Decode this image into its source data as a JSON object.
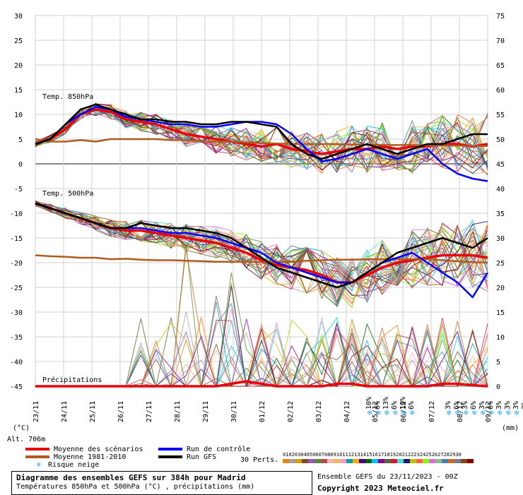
{
  "chart_data": {
    "type": "line",
    "x_labels": [
      "23/11",
      "24/11",
      "25/11",
      "26/11",
      "27/11",
      "28/11",
      "29/11",
      "30/11",
      "01/12",
      "02/12",
      "03/12",
      "04/12",
      "05/12",
      "06/12",
      "07/12",
      "08/12",
      "09/12"
    ],
    "y_left_ticks": [
      30,
      25,
      20,
      15,
      10,
      5,
      0,
      -5,
      -10,
      -15,
      -20,
      -25,
      -30,
      -35,
      -40,
      -45
    ],
    "y_right_ticks": [
      75,
      70,
      65,
      60,
      55,
      50,
      45,
      40,
      35,
      30,
      25,
      20,
      15,
      10,
      5,
      0
    ],
    "ylim": [
      -45,
      30
    ],
    "grid": true,
    "xlabel_left": "(°C)",
    "xlabel_right": "(mm)",
    "alt_label": "Alt. 706m",
    "section_labels": {
      "t850": "Temp. 850hPa",
      "t500": "Temp. 500hPa",
      "precip": "Précipitations"
    },
    "series": [
      {
        "name": "Moyenne des scénarios",
        "group": "t850",
        "color": "#e8000b",
        "values": [
          4,
          5,
          7,
          10,
          11,
          10.5,
          9,
          8.5,
          8,
          7,
          6,
          5.5,
          5,
          4.5,
          4,
          3.5,
          4,
          3,
          2.5,
          2,
          2.5,
          3,
          3,
          3.5,
          3,
          3.5,
          3.5,
          4,
          4,
          3.5,
          4
        ]
      },
      {
        "name": "Moyenne 1981-2010",
        "group": "t850",
        "color": "#b05a1e",
        "values": [
          5,
          4.5,
          4.5,
          4.8,
          4.5,
          5,
          5,
          5,
          5,
          4.8,
          4.8,
          4.6,
          4.5,
          4.5,
          4.3,
          4.2,
          4.1,
          4,
          4,
          4,
          4,
          3.9,
          3.9,
          3.8,
          3.8,
          3.8,
          3.7,
          3.7,
          3.7,
          3.6,
          3.6
        ]
      },
      {
        "name": "Run de contrôle",
        "group": "t850",
        "color": "#0000ff",
        "values": [
          4,
          5,
          8,
          10,
          11.5,
          11,
          9.5,
          9,
          8.5,
          8,
          8,
          7.5,
          7.5,
          8,
          8.5,
          8.5,
          8,
          6,
          3,
          0.5,
          1,
          2,
          3,
          2,
          1,
          2,
          3,
          0,
          -2,
          -3,
          -3.5
        ]
      },
      {
        "name": "Run GFS",
        "group": "t850",
        "color": "#000000",
        "values": [
          4,
          5,
          8,
          11,
          12,
          11,
          10,
          9,
          9,
          8.5,
          8.5,
          8,
          8,
          8.5,
          8.5,
          8,
          7.5,
          4,
          2,
          1,
          2,
          3,
          4,
          3,
          2,
          3,
          4,
          4,
          5,
          6,
          6
        ]
      },
      {
        "name": "Moyenne des scénarios",
        "group": "t500",
        "color": "#e8000b",
        "values": [
          -8,
          -9,
          -10,
          -11,
          -12,
          -13,
          -13.5,
          -13.5,
          -14,
          -14.5,
          -15,
          -15.5,
          -16,
          -17,
          -18,
          -19.5,
          -20.5,
          -21,
          -21.5,
          -22.5,
          -24,
          -24,
          -22.5,
          -21,
          -20,
          -19.5,
          -19,
          -18.5,
          -18.5,
          -18.5,
          -19
        ]
      },
      {
        "name": "Moyenne 1981-2010",
        "group": "t500",
        "color": "#b05a1e",
        "values": [
          -18.5,
          -18.7,
          -18.8,
          -19,
          -19,
          -19.3,
          -19.2,
          -19.4,
          -19.5,
          -19.5,
          -19.6,
          -19.7,
          -19.8,
          -19.8,
          -19.8,
          -19.9,
          -19.9,
          -19.8,
          -19.6,
          -19.5,
          -19.4,
          -19.4,
          -19.3,
          -19.3,
          -19.3,
          -19.3,
          -19.3,
          -19.5,
          -19.7,
          -19.9,
          -20
        ]
      },
      {
        "name": "Run de contrôle",
        "group": "t500",
        "color": "#0000ff",
        "values": [
          -8,
          -9,
          -10,
          -11,
          -12,
          -13,
          -13,
          -13,
          -13.5,
          -14,
          -14,
          -14.5,
          -15,
          -16,
          -17,
          -18,
          -20,
          -21,
          -22,
          -23,
          -24,
          -24,
          -22,
          -20,
          -19,
          -18,
          -20,
          -22,
          -24,
          -27,
          -22
        ]
      },
      {
        "name": "Run GFS",
        "group": "t500",
        "color": "#000000",
        "values": [
          -8,
          -9,
          -10,
          -11,
          -12,
          -13,
          -13,
          -12,
          -12.5,
          -13,
          -13,
          -13.5,
          -14,
          -15,
          -17,
          -19,
          -21,
          -22,
          -23,
          -24,
          -25,
          -24,
          -22,
          -20,
          -18,
          -17,
          -16,
          -15,
          -16,
          -17,
          -15
        ]
      },
      {
        "name": "Moyenne des scénarios",
        "group": "precip",
        "color": "#e8000b",
        "values": [
          -45,
          -45,
          -45,
          -45,
          -45,
          -45,
          -45,
          -45,
          -45,
          -45,
          -45,
          -45,
          -45,
          -44.5,
          -44,
          -44.5,
          -45,
          -45,
          -45,
          -45,
          -44.5,
          -44.5,
          -45,
          -45,
          -45,
          -45,
          -45,
          -44.5,
          -44.5,
          -44.8,
          -45
        ]
      }
    ],
    "snow_risk": [
      {
        "label": "10%",
        "day_index": 11.8
      },
      {
        "label": "6%",
        "day_index": 12.1
      },
      {
        "label": "13%",
        "day_index": 12.4
      },
      {
        "label": "6%",
        "day_index": 12.7
      },
      {
        "label": "10%",
        "day_index": 13.0
      },
      {
        "label": "6%",
        "day_index": 13.3
      },
      {
        "label": "3%",
        "day_index": 14.6
      },
      {
        "label": "6%",
        "day_index": 14.9
      },
      {
        "label": "3%",
        "day_index": 15.2
      },
      {
        "label": "6%",
        "day_index": 15.5
      },
      {
        "label": "3%",
        "day_index": 15.8
      },
      {
        "label": "6%",
        "day_index": 16.1
      },
      {
        "label": "3%",
        "day_index": 16.4
      },
      {
        "label": "3%",
        "day_index": 16.7
      },
      {
        "label": "3%",
        "day_index": 17.0
      },
      {
        "label": "3%",
        "day_index": 17.3
      },
      {
        "label": "3%",
        "day_index": 17.6
      },
      {
        "label": "3%",
        "day_index": 17.9
      }
    ]
  },
  "legend": {
    "items": [
      {
        "label": "Moyenne des scénarios",
        "color": "#e8000b"
      },
      {
        "label": "Moyenne 1981-2010",
        "color": "#b05a1e"
      },
      {
        "label": "Risque neige",
        "color": "#3aa8e8"
      },
      {
        "label": "Run de contrôle",
        "color": "#0000ff"
      },
      {
        "label": "Run GFS",
        "color": "#000000"
      }
    ],
    "perts_label": "30 Perts.",
    "pert_numbers": [
      "01",
      "02",
      "03",
      "04",
      "05",
      "06",
      "07",
      "08",
      "09",
      "10",
      "11",
      "12",
      "13",
      "14",
      "15",
      "16",
      "17",
      "18",
      "19",
      "20",
      "21",
      "22",
      "23",
      "24",
      "25",
      "26",
      "27",
      "28",
      "29",
      "30"
    ],
    "pert_colors": [
      "#e8850b",
      "#a0a0a0",
      "#d4a000",
      "#7a4f2a",
      "#9b59b6",
      "#5d8a3a",
      "#b34d4d",
      "#ffb3b3",
      "#e0c060",
      "#ff99cc",
      "#00a0a0",
      "#ffa500",
      "#4b0082",
      "#006400",
      "#00bfff",
      "#8b008b",
      "#556b2f",
      "#dc143c",
      "#40e0d0",
      "#191970",
      "#c0c000",
      "#ff6347",
      "#7fff00",
      "#da70d6",
      "#8fbc8f",
      "#4682b4",
      "#d2691e",
      "#708090",
      "#8b4513",
      "#800000"
    ]
  },
  "title_box": {
    "title": "Diagramme des ensembles GEFS sur 384h pour Madrid",
    "subtitle": "Températures 850hPa et 500hPa (°C) , précipitations (mm)"
  },
  "footer": {
    "run": "Ensemble GEFS du 23/11/2023 - 00Z",
    "copyright": "Copyright 2023 Meteociel.fr"
  }
}
